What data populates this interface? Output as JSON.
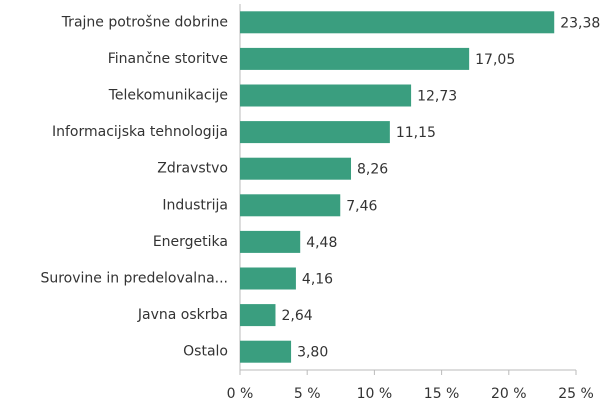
{
  "chart_data": {
    "type": "barh",
    "categories": [
      "Trajne potrošne dobrine",
      "Finančne storitve",
      "Telekomunikacije",
      "Informacijska tehnologija",
      "Zdravstvo",
      "Industrija",
      "Energetika",
      "Surovine in predelovalna...",
      "Javna oskrba",
      "Ostalo"
    ],
    "values": [
      23.38,
      17.05,
      12.73,
      11.15,
      8.26,
      7.46,
      4.48,
      4.16,
      2.64,
      3.8
    ],
    "value_labels": [
      "23,38",
      "17,05",
      "12,73",
      "11,15",
      "8,26",
      "7,46",
      "4,48",
      "4,16",
      "2,64",
      "3,80"
    ],
    "color": "#3a9e7f",
    "xlim": [
      0,
      25
    ],
    "xticks": [
      {
        "value": 0,
        "label": "0 %"
      },
      {
        "value": 5,
        "label": "5 %"
      },
      {
        "value": 10,
        "label": "10 %"
      },
      {
        "value": 15,
        "label": "15 %"
      },
      {
        "value": 20,
        "label": "20 %"
      },
      {
        "value": 25,
        "label": "25 %"
      }
    ]
  }
}
